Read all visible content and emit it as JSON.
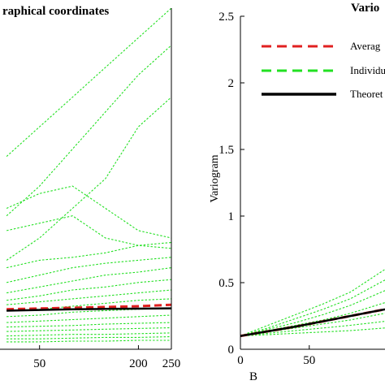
{
  "colors": {
    "average": "#e02020",
    "individual": "#22e022",
    "theoretical": "#000000"
  },
  "chart_data": [
    {
      "type": "line",
      "title": "raphical coordinates",
      "xlabel": "",
      "ylabel": "",
      "xlim": [
        -10,
        250
      ],
      "x_ticks": [
        50,
        200,
        250
      ],
      "x_tick_labels": [
        "50",
        "200",
        "250"
      ],
      "series": [
        {
          "style": "dotted",
          "color": "#22e022",
          "x": [
            0,
            50,
            100,
            150,
            200,
            250
          ],
          "y": [
            1.3,
            1.5,
            1.7,
            1.9,
            2.1,
            2.3
          ]
        },
        {
          "style": "dotted",
          "color": "#22e022",
          "x": [
            0,
            50,
            100,
            150,
            200,
            250
          ],
          "y": [
            0.9,
            1.1,
            1.35,
            1.6,
            1.85,
            2.05
          ]
        },
        {
          "style": "dotted",
          "color": "#22e022",
          "x": [
            0,
            50,
            100,
            150,
            200,
            250
          ],
          "y": [
            0.6,
            0.75,
            0.95,
            1.15,
            1.5,
            1.7
          ]
        },
        {
          "style": "dotted",
          "color": "#22e022",
          "x": [
            0,
            50,
            100,
            150,
            200,
            250
          ],
          "y": [
            0.95,
            1.05,
            1.1,
            0.95,
            0.8,
            0.75
          ]
        },
        {
          "style": "dotted",
          "color": "#22e022",
          "x": [
            0,
            50,
            100,
            150,
            200,
            250
          ],
          "y": [
            0.8,
            0.85,
            0.9,
            0.75,
            0.7,
            0.72
          ]
        },
        {
          "style": "dotted",
          "color": "#22e022",
          "x": [
            0,
            50,
            100,
            150,
            200,
            250
          ],
          "y": [
            0.55,
            0.6,
            0.62,
            0.65,
            0.7,
            0.68
          ]
        },
        {
          "style": "dotted",
          "color": "#22e022",
          "x": [
            0,
            50,
            100,
            150,
            200,
            250
          ],
          "y": [
            0.45,
            0.5,
            0.55,
            0.58,
            0.6,
            0.62
          ]
        },
        {
          "style": "dotted",
          "color": "#22e022",
          "x": [
            0,
            50,
            100,
            150,
            200,
            250
          ],
          "y": [
            0.38,
            0.42,
            0.46,
            0.5,
            0.52,
            0.55
          ]
        },
        {
          "style": "dotted",
          "color": "#22e022",
          "x": [
            0,
            50,
            100,
            150,
            200,
            250
          ],
          "y": [
            0.33,
            0.36,
            0.4,
            0.42,
            0.45,
            0.47
          ]
        },
        {
          "style": "dotted",
          "color": "#22e022",
          "x": [
            0,
            50,
            100,
            150,
            200,
            250
          ],
          "y": [
            0.3,
            0.32,
            0.34,
            0.36,
            0.38,
            0.4
          ]
        },
        {
          "style": "dotted",
          "color": "#22e022",
          "x": [
            0,
            50,
            100,
            150,
            200,
            250
          ],
          "y": [
            0.26,
            0.27,
            0.29,
            0.31,
            0.33,
            0.34
          ]
        },
        {
          "style": "dotted",
          "color": "#22e022",
          "x": [
            0,
            50,
            100,
            150,
            200,
            250
          ],
          "y": [
            0.22,
            0.23,
            0.25,
            0.26,
            0.27,
            0.28
          ]
        },
        {
          "style": "dotted",
          "color": "#22e022",
          "x": [
            0,
            50,
            100,
            150,
            200,
            250
          ],
          "y": [
            0.18,
            0.19,
            0.2,
            0.21,
            0.22,
            0.23
          ]
        },
        {
          "style": "dotted",
          "color": "#22e022",
          "x": [
            0,
            50,
            100,
            150,
            200,
            250
          ],
          "y": [
            0.15,
            0.155,
            0.16,
            0.17,
            0.175,
            0.18
          ]
        },
        {
          "style": "dotted",
          "color": "#22e022",
          "x": [
            0,
            50,
            100,
            150,
            200,
            250
          ],
          "y": [
            0.12,
            0.125,
            0.13,
            0.135,
            0.14,
            0.145
          ]
        },
        {
          "style": "dotted",
          "color": "#22e022",
          "x": [
            0,
            50,
            100,
            150,
            200,
            250
          ],
          "y": [
            0.09,
            0.095,
            0.1,
            0.1,
            0.105,
            0.11
          ]
        },
        {
          "style": "dotted",
          "color": "#22e022",
          "x": [
            0,
            50,
            100,
            150,
            200,
            250
          ],
          "y": [
            0.07,
            0.07,
            0.075,
            0.08,
            0.08,
            0.085
          ]
        },
        {
          "style": "dotted",
          "color": "#22e022",
          "x": [
            0,
            50,
            100,
            150,
            200,
            250
          ],
          "y": [
            0.05,
            0.05,
            0.055,
            0.055,
            0.06,
            0.06
          ]
        },
        {
          "style": "dashed",
          "color": "#e02020",
          "x": [
            0,
            50,
            100,
            150,
            200,
            250
          ],
          "y": [
            0.27,
            0.275,
            0.28,
            0.285,
            0.29,
            0.3
          ]
        },
        {
          "style": "solid",
          "color": "#000000",
          "x": [
            0,
            50,
            100,
            150,
            200,
            250
          ],
          "y": [
            0.26,
            0.265,
            0.27,
            0.272,
            0.274,
            0.276
          ]
        }
      ]
    },
    {
      "type": "line",
      "title": "Vario",
      "xlabel": "B",
      "ylabel": "Variogram",
      "xlim": [
        0,
        105
      ],
      "ylim": [
        0,
        2.5
      ],
      "x_ticks": [
        0,
        50
      ],
      "y_ticks": [
        0,
        0.5,
        1,
        1.5,
        2,
        2.5
      ],
      "y_tick_labels": [
        "0",
        "0.5",
        "1",
        "1.5",
        "2",
        "2.5"
      ],
      "legend_location": "top-right",
      "legend": [
        "Averag",
        "Individu",
        "Theoret"
      ],
      "series": [
        {
          "name": "Individu",
          "style": "dotted",
          "color": "#22e022",
          "x": [
            0,
            20,
            40,
            60,
            80,
            105
          ],
          "y": [
            0.1,
            0.18,
            0.26,
            0.34,
            0.43,
            0.6
          ]
        },
        {
          "style": "dotted",
          "color": "#22e022",
          "x": [
            0,
            20,
            40,
            60,
            80,
            105
          ],
          "y": [
            0.1,
            0.16,
            0.23,
            0.3,
            0.38,
            0.52
          ]
        },
        {
          "style": "dotted",
          "color": "#22e022",
          "x": [
            0,
            20,
            40,
            60,
            80,
            105
          ],
          "y": [
            0.1,
            0.15,
            0.2,
            0.26,
            0.33,
            0.44
          ]
        },
        {
          "style": "dotted",
          "color": "#22e022",
          "x": [
            0,
            20,
            40,
            60,
            80,
            105
          ],
          "y": [
            0.1,
            0.14,
            0.18,
            0.22,
            0.27,
            0.35
          ]
        },
        {
          "style": "dotted",
          "color": "#22e022",
          "x": [
            0,
            20,
            40,
            60,
            80,
            105
          ],
          "y": [
            0.1,
            0.13,
            0.16,
            0.19,
            0.22,
            0.27
          ]
        },
        {
          "style": "dotted",
          "color": "#22e022",
          "x": [
            0,
            20,
            40,
            60,
            80,
            105
          ],
          "y": [
            0.1,
            0.12,
            0.14,
            0.16,
            0.18,
            0.21
          ]
        },
        {
          "style": "dotted",
          "color": "#22e022",
          "x": [
            0,
            20,
            40,
            60,
            80,
            105
          ],
          "y": [
            0.1,
            0.11,
            0.12,
            0.13,
            0.14,
            0.16
          ]
        },
        {
          "name": "Averag",
          "style": "dashed",
          "color": "#e02020",
          "x": [
            0,
            20,
            40,
            60,
            80,
            105
          ],
          "y": [
            0.1,
            0.135,
            0.17,
            0.21,
            0.25,
            0.3
          ]
        },
        {
          "name": "Theoret",
          "style": "solid",
          "color": "#000000",
          "x": [
            0,
            20,
            40,
            60,
            80,
            105
          ],
          "y": [
            0.1,
            0.135,
            0.17,
            0.21,
            0.25,
            0.3
          ]
        }
      ]
    }
  ]
}
